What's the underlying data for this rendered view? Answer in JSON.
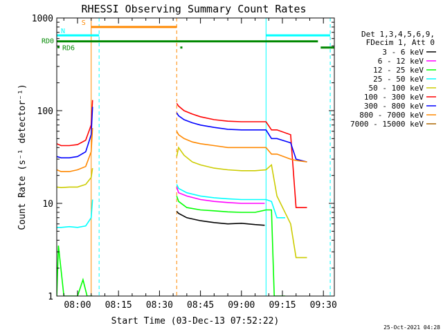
{
  "chart_data": {
    "type": "line",
    "title": "RHESSI Observing Summary Count Rates",
    "xlabel": "Start Time (03-Dec-13 07:52:22)",
    "ylabel": "Count Rate (s⁻¹ detector⁻¹)",
    "y_scale": "log",
    "ylim": [
      1,
      1000
    ],
    "x_unit": "minutes since 08:00",
    "xlim": [
      -7.6,
      94.0
    ],
    "x_ticks": [
      {
        "value": 0,
        "label": "08:00"
      },
      {
        "value": 15,
        "label": "08:15"
      },
      {
        "value": 30,
        "label": "08:30"
      },
      {
        "value": 45,
        "label": "08:45"
      },
      {
        "value": 60,
        "label": "09:00"
      },
      {
        "value": 75,
        "label": "09:15"
      },
      {
        "value": 90,
        "label": "09:30"
      }
    ],
    "y_ticks": [
      {
        "value": 1,
        "label": "1"
      },
      {
        "value": 10,
        "label": "10"
      },
      {
        "value": 100,
        "label": "100"
      },
      {
        "value": 1000,
        "label": "1000"
      }
    ],
    "legend": {
      "placement": "right",
      "header": [
        "Det 1,3,4,5,6,9,",
        "FDecim 1, Att 0"
      ]
    },
    "series": [
      {
        "name": "3 - 6 keV",
        "color": "#000000",
        "segments": [
          {
            "x": [
              36.3,
              37,
              40,
              45,
              50,
              55,
              60,
              65,
              68.5
            ],
            "y": [
              8.2,
              7.8,
              7.0,
              6.5,
              6.2,
              6.0,
              6.1,
              5.9,
              5.8
            ]
          }
        ]
      },
      {
        "name": "6 - 12 keV",
        "color": "#ff00ff",
        "segments": [
          {
            "x": [
              36.3,
              37,
              40,
              45,
              50,
              55,
              60,
              65,
              68.5
            ],
            "y": [
              15,
              13,
              12,
              11,
              10.5,
              10.2,
              10,
              10,
              10
            ]
          }
        ]
      },
      {
        "name": "12 - 25 keV",
        "color": "#00ff00",
        "segments": [
          {
            "x": [
              -7.6,
              -7,
              -5,
              -2,
              0,
              2,
              3.5,
              5.5
            ],
            "y": [
              1.0,
              3.5,
              1.0,
              1.0,
              1.0,
              1.5,
              1.0,
              1.0
            ]
          },
          {
            "x": [
              36.3,
              37,
              40,
              45,
              50,
              55,
              60,
              65,
              69,
              71,
              72,
              76
            ],
            "y": [
              12,
              10.5,
              9,
              8.5,
              8.3,
              8.1,
              8.0,
              8.0,
              8.5,
              8.5,
              1.0,
              1.0
            ]
          }
        ]
      },
      {
        "name": "25 - 50 keV",
        "color": "#00ffff",
        "segments": [
          {
            "x": [
              -7.6,
              -6,
              -3,
              0,
              3,
              5.0,
              5.5
            ],
            "y": [
              5.5,
              5.5,
              5.6,
              5.5,
              5.7,
              7.0,
              11
            ]
          },
          {
            "x": [
              36.3,
              37,
              40,
              45,
              50,
              55,
              60,
              65,
              69,
              71,
              73,
              76
            ],
            "y": [
              16,
              14.5,
              13,
              12,
              11.5,
              11.2,
              11.0,
              11.0,
              11.0,
              10.5,
              7.0,
              7.0
            ]
          }
        ]
      },
      {
        "name": "50 - 100 keV",
        "color": "#cccc00",
        "segments": [
          {
            "x": [
              -7.6,
              -6,
              -3,
              0,
              3,
              5.0,
              5.5
            ],
            "y": [
              15,
              14.8,
              15,
              15,
              16,
              19,
              24
            ]
          },
          {
            "x": [
              36.3,
              37,
              39,
              42,
              45,
              50,
              55,
              60,
              65,
              69,
              71,
              73,
              78,
              80,
              84
            ],
            "y": [
              32,
              40,
              33,
              28,
              26,
              24,
              23,
              22.5,
              22.5,
              23,
              26,
              12,
              6,
              2.6,
              2.6
            ]
          }
        ]
      },
      {
        "name": "100 - 300 keV",
        "color": "#ff0000",
        "segments": [
          {
            "x": [
              -7.6,
              -6,
              -3,
              0,
              3,
              5.0,
              5.5
            ],
            "y": [
              44,
              42,
              42,
              43,
              48,
              70,
              130
            ]
          },
          {
            "x": [
              36.3,
              37,
              39,
              42,
              45,
              50,
              55,
              60,
              65,
              69,
              71,
              73,
              78,
              80,
              84
            ],
            "y": [
              120,
              112,
              100,
              92,
              86,
              80,
              77,
              76,
              76,
              76,
              62,
              62,
              55,
              9,
              9
            ]
          }
        ]
      },
      {
        "name": "300 - 800 keV",
        "color": "#0000ff",
        "segments": [
          {
            "x": [
              -7.6,
              -6,
              -3,
              0,
              3,
              5.0,
              5.5
            ],
            "y": [
              32,
              31,
              31,
              32,
              36,
              55,
              110
            ]
          },
          {
            "x": [
              36.3,
              37,
              39,
              42,
              45,
              50,
              55,
              60,
              65,
              69,
              71,
              73,
              78,
              80,
              84
            ],
            "y": [
              95,
              88,
              80,
              74,
              70,
              66,
              63,
              62,
              62,
              62,
              50,
              50,
              45,
              30,
              28
            ]
          }
        ]
      },
      {
        "name": "800 - 7000 keV",
        "color": "#ff8800",
        "segments": [
          {
            "x": [
              -7.6,
              -6,
              -3,
              0,
              3,
              5.0,
              5.5
            ],
            "y": [
              23,
              22,
              22,
              23,
              25,
              36,
              65
            ]
          },
          {
            "x": [
              36.3,
              37,
              39,
              42,
              45,
              50,
              55,
              60,
              65,
              69,
              71,
              73,
              78,
              80,
              84
            ],
            "y": [
              60,
              55,
              50,
              46,
              44,
              42,
              40,
              40,
              40,
              40,
              34,
              34,
              30,
              29,
              28
            ]
          }
        ]
      },
      {
        "name": "7000 - 15000 keV",
        "color": "#aa6600",
        "segments": []
      }
    ],
    "annotations": [
      {
        "text": "S",
        "color": "#ff8800",
        "type": "bar",
        "x_start": 5.0,
        "x_end": 36.3,
        "y": 800
      },
      {
        "text": "N",
        "color": "#00ffff",
        "type": "bar",
        "x_start": -7.6,
        "x_end": 7.9,
        "y": 650
      },
      {
        "text": "",
        "color": "#00ffff",
        "type": "bar",
        "x_start": 69.0,
        "x_end": 92.5,
        "y": 650
      },
      {
        "text": "RD0",
        "color": "#008800",
        "type": "bar",
        "x_start": -7.6,
        "x_end": 88.0,
        "y": 560
      },
      {
        "text": "",
        "color": "#008800",
        "type": "bar",
        "x_start": 89.0,
        "x_end": 94.0,
        "y": 480
      },
      {
        "text": "RD6",
        "color": "#008800",
        "type": "label",
        "x_start": -7.6,
        "y": 480
      },
      {
        "text": "",
        "color": "#008800",
        "type": "dot",
        "x_start": 38.0,
        "y": 480
      }
    ],
    "vlines": [
      {
        "x": 5.0,
        "color": "#ff8800",
        "style": "solid"
      },
      {
        "x": 7.9,
        "color": "#00ffff",
        "style": "dashed"
      },
      {
        "x": 36.3,
        "color": "#ff8800",
        "style": "dashed"
      },
      {
        "x": 69.0,
        "color": "#00ffff",
        "style": "solid"
      },
      {
        "x": 92.5,
        "color": "#00ffff",
        "style": "dashed"
      }
    ],
    "timestamp": "25-Oct-2021 04:28"
  }
}
